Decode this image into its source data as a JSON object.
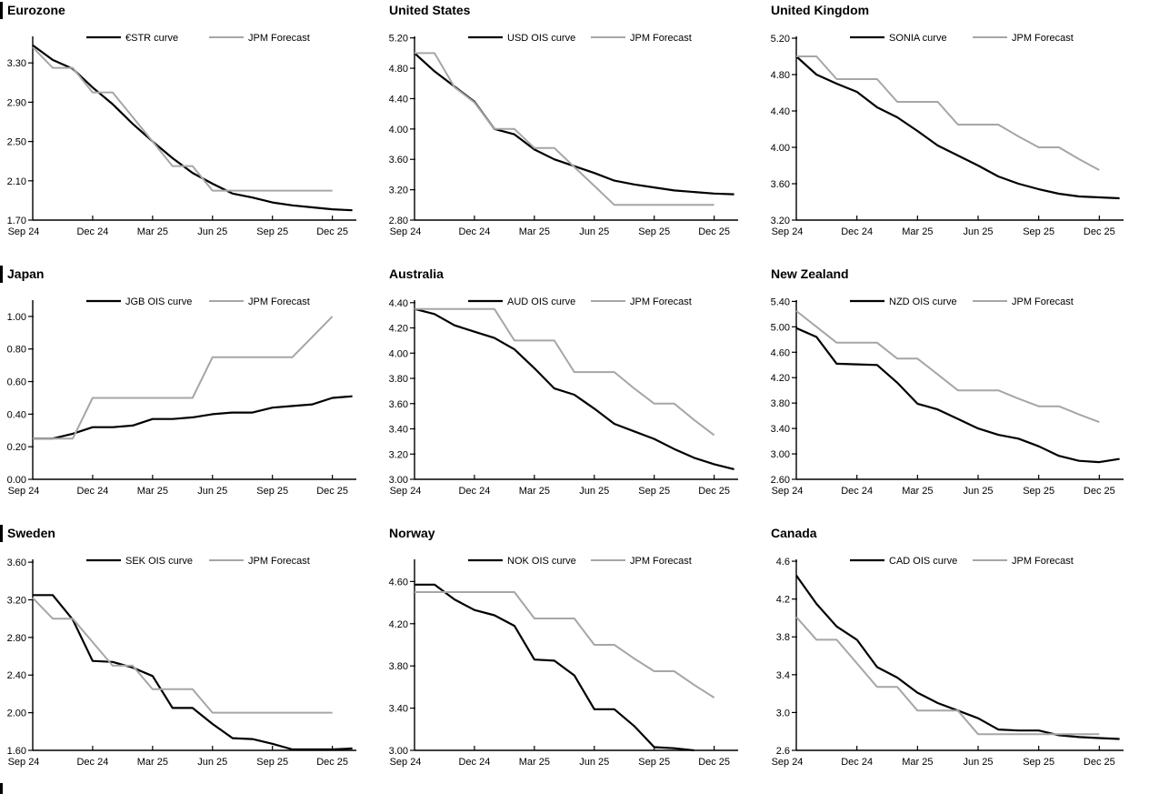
{
  "page": {
    "background": "#ffffff",
    "accent_black": "#000000",
    "forecast_gray": "#a6a6a6"
  },
  "x_axis": {
    "tick_labels": [
      "Sep 24",
      "Dec 24",
      "Mar 25",
      "Jun 25",
      "Sep 25",
      "Dec 25"
    ],
    "tick_months": [
      0,
      3,
      6,
      9,
      12,
      15
    ],
    "x_max_month": 16.2
  },
  "chart_data": [
    {
      "type": "line",
      "title": "Eurozone",
      "section_bar": true,
      "legend": [
        "€STR curve",
        "JPM Forecast"
      ],
      "y_min": 1.7,
      "y_max": 3.57,
      "y_tick_labels": [
        "3.30",
        "2.90",
        "2.50",
        "2.10",
        "1.70"
      ],
      "x_tick_labels": [
        "Sep 24",
        "Dec 24",
        "Mar 25",
        "Jun 25",
        "Sep 25",
        "Dec 25"
      ],
      "series": [
        {
          "name": "€STR curve",
          "color": "#000000",
          "width": 2.2,
          "values": [
            3.48,
            3.33,
            3.24,
            3.05,
            2.88,
            2.68,
            2.5,
            2.33,
            2.18,
            2.07,
            1.97,
            1.93,
            1.88,
            1.85,
            1.83,
            1.81,
            1.8
          ]
        },
        {
          "name": "JPM Forecast",
          "color": "#a6a6a6",
          "width": 2,
          "values": [
            3.46,
            3.25,
            3.25,
            3.0,
            3.0,
            2.75,
            2.5,
            2.25,
            2.25,
            2.0,
            2.0,
            2.0,
            2.0,
            2.0,
            2.0,
            2.0
          ]
        }
      ]
    },
    {
      "type": "line",
      "title": "United States",
      "section_bar": false,
      "legend": [
        "USD OIS curve",
        "JPM Forecast"
      ],
      "y_min": 2.8,
      "y_max": 5.22,
      "y_tick_labels": [
        "5.20",
        "4.80",
        "4.40",
        "4.00",
        "3.60",
        "3.20",
        "2.80"
      ],
      "x_tick_labels": [
        "Sep 24",
        "Dec 24",
        "Mar 25",
        "Jun 25",
        "Sep 25",
        "Dec 25"
      ],
      "series": [
        {
          "name": "USD OIS curve",
          "color": "#000000",
          "width": 2.2,
          "values": [
            5.0,
            4.76,
            4.56,
            4.36,
            4.0,
            3.93,
            3.73,
            3.6,
            3.51,
            3.42,
            3.32,
            3.27,
            3.23,
            3.19,
            3.17,
            3.15,
            3.14
          ]
        },
        {
          "name": "JPM Forecast",
          "color": "#a6a6a6",
          "width": 2,
          "values": [
            5.0,
            5.0,
            4.55,
            4.35,
            4.0,
            4.0,
            3.75,
            3.75,
            3.5,
            3.25,
            3.0,
            3.0,
            3.0,
            3.0,
            3.0,
            3.0
          ]
        }
      ]
    },
    {
      "type": "line",
      "title": "United Kingdom",
      "section_bar": false,
      "legend": [
        "SONIA curve",
        "JPM Forecast"
      ],
      "y_min": 3.2,
      "y_max": 5.22,
      "y_tick_labels": [
        "5.20",
        "4.80",
        "4.40",
        "4.00",
        "3.60",
        "3.20"
      ],
      "x_tick_labels": [
        "Sep 24",
        "Dec 24",
        "Mar 25",
        "Jun 25",
        "Sep 25",
        "Dec 25"
      ],
      "series": [
        {
          "name": "SONIA curve",
          "color": "#000000",
          "width": 2.2,
          "values": [
            5.0,
            4.8,
            4.7,
            4.61,
            4.44,
            4.33,
            4.18,
            4.02,
            3.91,
            3.8,
            3.68,
            3.6,
            3.54,
            3.49,
            3.46,
            3.45,
            3.44
          ]
        },
        {
          "name": "JPM Forecast",
          "color": "#a6a6a6",
          "width": 2,
          "values": [
            5.0,
            5.0,
            4.75,
            4.75,
            4.75,
            4.5,
            4.5,
            4.5,
            4.25,
            4.25,
            4.25,
            4.12,
            4.0,
            4.0,
            3.87,
            3.75
          ]
        }
      ]
    },
    {
      "type": "line",
      "title": "Japan",
      "section_bar": true,
      "legend": [
        "JGB OIS curve",
        "JPM Forecast"
      ],
      "y_min": 0.0,
      "y_max": 1.1,
      "y_tick_labels": [
        "1.00",
        "0.80",
        "0.60",
        "0.40",
        "0.20",
        "0.00"
      ],
      "x_tick_labels": [
        "Sep 24",
        "Dec 24",
        "Mar 25",
        "Jun 25",
        "Sep 25",
        "Dec 25"
      ],
      "series": [
        {
          "name": "JGB OIS curve",
          "color": "#000000",
          "width": 2.2,
          "values": [
            0.25,
            0.25,
            0.28,
            0.32,
            0.32,
            0.33,
            0.37,
            0.37,
            0.38,
            0.4,
            0.41,
            0.41,
            0.44,
            0.45,
            0.46,
            0.5,
            0.51
          ]
        },
        {
          "name": "JPM Forecast",
          "color": "#a6a6a6",
          "width": 2,
          "values": [
            0.25,
            0.25,
            0.25,
            0.5,
            0.5,
            0.5,
            0.5,
            0.5,
            0.5,
            0.75,
            0.75,
            0.75,
            0.75,
            0.75,
            0.875,
            1.0
          ]
        }
      ]
    },
    {
      "type": "line",
      "title": "Australia",
      "section_bar": false,
      "legend": [
        "AUD OIS curve",
        "JPM Forecast"
      ],
      "y_min": 3.0,
      "y_max": 4.42,
      "y_tick_labels": [
        "4.40",
        "4.20",
        "4.00",
        "3.80",
        "3.60",
        "3.40",
        "3.20",
        "3.00"
      ],
      "x_tick_labels": [
        "Sep 24",
        "Dec 24",
        "Mar 25",
        "Jun 25",
        "Sep 25",
        "Dec 25"
      ],
      "series": [
        {
          "name": "AUD OIS curve",
          "color": "#000000",
          "width": 2.2,
          "values": [
            4.35,
            4.31,
            4.22,
            4.17,
            4.12,
            4.03,
            3.88,
            3.72,
            3.67,
            3.56,
            3.44,
            3.38,
            3.32,
            3.24,
            3.17,
            3.12,
            3.08
          ]
        },
        {
          "name": "JPM Forecast",
          "color": "#a6a6a6",
          "width": 2,
          "values": [
            4.35,
            4.35,
            4.35,
            4.35,
            4.35,
            4.1,
            4.1,
            4.1,
            3.85,
            3.85,
            3.85,
            3.72,
            3.6,
            3.6,
            3.47,
            3.35
          ]
        }
      ]
    },
    {
      "type": "line",
      "title": "New Zealand",
      "section_bar": false,
      "legend": [
        "NZD OIS curve",
        "JPM Forecast"
      ],
      "y_min": 2.6,
      "y_max": 5.42,
      "y_tick_labels": [
        "5.40",
        "5.00",
        "4.60",
        "4.20",
        "3.80",
        "3.40",
        "3.00",
        "2.60"
      ],
      "x_tick_labels": [
        "Sep 24",
        "Dec 24",
        "Mar 25",
        "Jun 25",
        "Sep 25",
        "Dec 25"
      ],
      "series": [
        {
          "name": "NZD OIS curve",
          "color": "#000000",
          "width": 2.2,
          "values": [
            4.98,
            4.84,
            4.42,
            4.41,
            4.4,
            4.12,
            3.79,
            3.7,
            3.55,
            3.4,
            3.3,
            3.24,
            3.12,
            2.97,
            2.89,
            2.87,
            2.92
          ]
        },
        {
          "name": "JPM Forecast",
          "color": "#a6a6a6",
          "width": 2,
          "values": [
            5.25,
            5.0,
            4.75,
            4.75,
            4.75,
            4.5,
            4.5,
            4.25,
            4.0,
            4.0,
            4.0,
            3.87,
            3.75,
            3.75,
            3.62,
            3.5
          ]
        }
      ]
    },
    {
      "type": "line",
      "title": "Sweden",
      "section_bar": true,
      "legend": [
        "SEK OIS curve",
        "JPM Forecast"
      ],
      "y_min": 1.6,
      "y_max": 3.63,
      "y_tick_labels": [
        "3.60",
        "3.20",
        "2.80",
        "2.40",
        "2.00",
        "1.60"
      ],
      "x_tick_labels": [
        "Sep 24",
        "Dec 24",
        "Mar 25",
        "Jun 25",
        "Sep 25",
        "Dec 25"
      ],
      "series": [
        {
          "name": "SEK OIS curve",
          "color": "#000000",
          "width": 2.2,
          "values": [
            3.25,
            3.25,
            2.99,
            2.55,
            2.54,
            2.48,
            2.39,
            2.05,
            2.05,
            1.88,
            1.73,
            1.72,
            1.67,
            1.61,
            1.61,
            1.61,
            1.62
          ]
        },
        {
          "name": "JPM Forecast",
          "color": "#a6a6a6",
          "width": 2,
          "values": [
            3.22,
            3.0,
            3.0,
            2.75,
            2.5,
            2.5,
            2.25,
            2.25,
            2.25,
            2.0,
            2.0,
            2.0,
            2.0,
            2.0,
            2.0,
            2.0
          ]
        }
      ]
    },
    {
      "type": "line",
      "title": "Norway",
      "section_bar": false,
      "legend": [
        "NOK OIS curve",
        "JPM Forecast"
      ],
      "y_min": 3.0,
      "y_max": 4.81,
      "y_tick_labels": [
        "4.60",
        "4.20",
        "3.80",
        "3.40",
        "3.00"
      ],
      "x_tick_labels": [
        "Sep 24",
        "Dec 24",
        "Mar 25",
        "Jun 25",
        "Sep 25",
        "Dec 25"
      ],
      "series": [
        {
          "name": "NOK OIS curve",
          "color": "#000000",
          "width": 2.2,
          "values": [
            4.57,
            4.57,
            4.43,
            4.33,
            4.28,
            4.18,
            3.86,
            3.85,
            3.71,
            3.39,
            3.39,
            3.23,
            3.03,
            3.02,
            3.0
          ]
        },
        {
          "name": "JPM Forecast",
          "color": "#a6a6a6",
          "width": 2,
          "values": [
            4.5,
            4.5,
            4.5,
            4.5,
            4.5,
            4.5,
            4.25,
            4.25,
            4.25,
            4.0,
            4.0,
            3.87,
            3.75,
            3.75,
            3.62,
            3.5
          ]
        }
      ]
    },
    {
      "type": "line",
      "title": "Canada",
      "section_bar": false,
      "legend": [
        "CAD OIS curve",
        "JPM Forecast"
      ],
      "y_min": 2.6,
      "y_max": 4.62,
      "y_tick_labels": [
        "4.6",
        "4.2",
        "3.8",
        "3.4",
        "3.0",
        "2.6"
      ],
      "x_tick_labels": [
        "Sep 24",
        "Dec 24",
        "Mar 25",
        "Jun 25",
        "Sep 25",
        "Dec 25"
      ],
      "series": [
        {
          "name": "CAD OIS curve",
          "color": "#000000",
          "width": 2.2,
          "values": [
            4.45,
            4.15,
            3.91,
            3.77,
            3.48,
            3.37,
            3.21,
            3.1,
            3.02,
            2.94,
            2.82,
            2.81,
            2.81,
            2.76,
            2.74,
            2.73,
            2.72
          ]
        },
        {
          "name": "JPM Forecast",
          "color": "#a6a6a6",
          "width": 2,
          "values": [
            4.01,
            3.77,
            3.77,
            3.52,
            3.27,
            3.27,
            3.02,
            3.02,
            3.02,
            2.77,
            2.77,
            2.77,
            2.77,
            2.77,
            2.77,
            2.77
          ]
        }
      ]
    }
  ],
  "footer": {
    "partial_next_section_bar": true
  }
}
